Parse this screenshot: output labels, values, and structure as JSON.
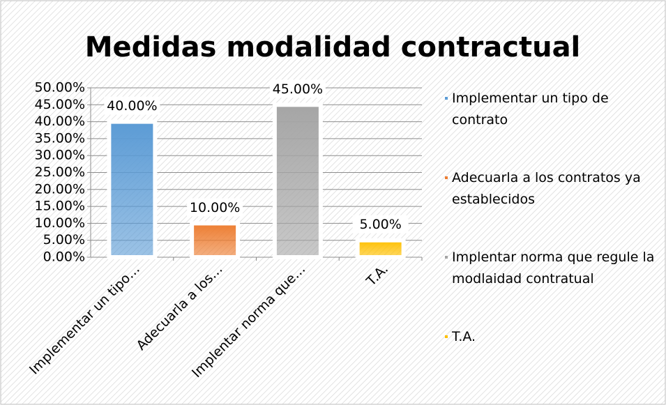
{
  "chart_data": {
    "type": "bar",
    "title": "Medidas modalidad contractual",
    "categories": [
      "Implementar un tipo…",
      "Adecuarla a los…",
      "Implentar norma que…",
      "T.A."
    ],
    "values": [
      40,
      10,
      45,
      5
    ],
    "value_labels": [
      "40.00%",
      "10.00%",
      "45.00%",
      "5.00%"
    ],
    "colors": [
      "#5b9bd5",
      "#ed7d31",
      "#a5a5a5",
      "#ffc000"
    ],
    "legend": [
      "Implementar un tipo de contrato",
      "Adecuarla a los contratos ya establecidos",
      "Implentar norma que regule la modlaidad contratual",
      "T.A."
    ],
    "ylim": [
      0,
      50
    ],
    "yticks": [
      {
        "value": 0,
        "label": "0.00%"
      },
      {
        "value": 5,
        "label": "5.00%"
      },
      {
        "value": 10,
        "label": "10.00%"
      },
      {
        "value": 15,
        "label": "15.00%"
      },
      {
        "value": 20,
        "label": "20.00%"
      },
      {
        "value": 25,
        "label": "25.00%"
      },
      {
        "value": 30,
        "label": "30.00%"
      },
      {
        "value": 35,
        "label": "35.00%"
      },
      {
        "value": 40,
        "label": "40.00%"
      },
      {
        "value": 45,
        "label": "45.00%"
      },
      {
        "value": 50,
        "label": "50.00%"
      }
    ],
    "grid": true
  }
}
